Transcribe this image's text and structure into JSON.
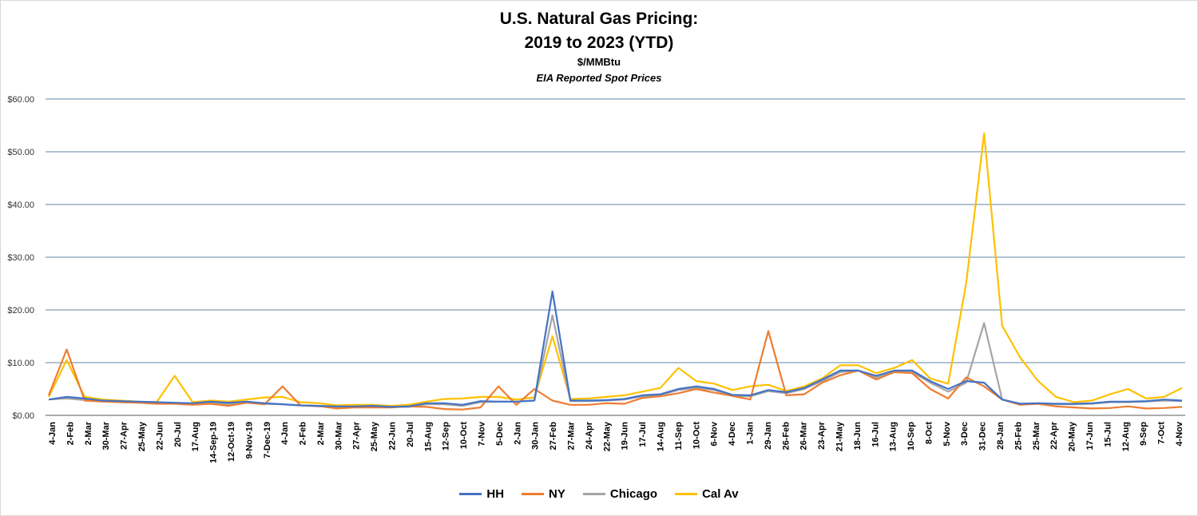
{
  "chart_data": {
    "type": "line",
    "title": "U.S. Natural Gas Pricing:",
    "title_line2": "2019 to 2023 (YTD)",
    "subtitle": "$/MMBtu",
    "subtitle2": "EIA Reported Spot Prices",
    "xlabel": "",
    "ylabel": "",
    "ylim": [
      0,
      60
    ],
    "yticks": [
      "$0.00",
      "$10.00",
      "$20.00",
      "$30.00",
      "$40.00",
      "$50.00",
      "$60.00"
    ],
    "grid": true,
    "legend_position": "bottom",
    "x_tick_labels": [
      "4-Jan",
      "2-Feb",
      "2-Mar",
      "30-Mar",
      "27-Apr",
      "25-May",
      "22-Jun",
      "20-Jul",
      "17-Aug",
      "14-Sep-19",
      "12-Oct-19",
      "9-Nov-19",
      "7-Dec-19",
      "4-Jan",
      "2-Feb",
      "2-Mar",
      "30-Mar",
      "27-Apr",
      "25-May",
      "22-Jun",
      "20-Jul",
      "15-Aug",
      "12-Sep",
      "10-Oct",
      "7-Nov",
      "5-Dec",
      "2-Jan",
      "30-Jan",
      "27-Feb",
      "27-Mar",
      "24-Apr",
      "22-May",
      "19-Jun",
      "17-Jul",
      "14-Aug",
      "11-Sep",
      "10-Oct",
      "6-Nov",
      "4-Dec",
      "1-Jan",
      "29-Jan",
      "26-Feb",
      "26-Mar",
      "23-Apr",
      "21-May",
      "18-Jun",
      "16-Jul",
      "13-Aug",
      "10-Sep",
      "8-Oct",
      "5-Nov",
      "3-Dec",
      "31-Dec",
      "28-Jan",
      "25-Feb",
      "25-Mar",
      "22-Apr",
      "20-May",
      "17-Jun",
      "15-Jul",
      "12-Aug",
      "9-Sep",
      "7-Oct",
      "4-Nov"
    ],
    "series": [
      {
        "name": "HH",
        "color": "#4472c4",
        "values": [
          3.0,
          3.5,
          3.2,
          2.8,
          2.7,
          2.6,
          2.5,
          2.4,
          2.3,
          2.6,
          2.4,
          2.6,
          2.3,
          2.1,
          1.9,
          1.8,
          1.7,
          1.7,
          1.8,
          1.6,
          1.7,
          2.3,
          2.3,
          2.0,
          2.7,
          2.6,
          2.6,
          2.8,
          23.5,
          2.8,
          2.8,
          2.9,
          3.1,
          3.8,
          4.0,
          5.0,
          5.5,
          5.0,
          3.9,
          3.8,
          4.8,
          4.4,
          5.2,
          6.8,
          8.5,
          8.5,
          7.5,
          8.5,
          8.5,
          6.5,
          5.0,
          6.5,
          6.2,
          3.0,
          2.2,
          2.3,
          2.2,
          2.2,
          2.3,
          2.6,
          2.6,
          2.7,
          3.0,
          2.8
        ]
      },
      {
        "name": "NY",
        "color": "#ed7d31",
        "values": [
          3.8,
          12.5,
          2.8,
          2.6,
          2.5,
          2.4,
          2.2,
          2.2,
          2.0,
          2.2,
          1.8,
          2.4,
          2.1,
          5.5,
          1.9,
          1.8,
          1.3,
          1.5,
          1.5,
          1.5,
          1.7,
          1.6,
          1.2,
          1.1,
          1.5,
          5.5,
          2.0,
          5.0,
          2.8,
          2.0,
          2.0,
          2.3,
          2.2,
          3.3,
          3.6,
          4.2,
          5.0,
          4.3,
          3.7,
          3.0,
          16.0,
          3.8,
          4.0,
          6.2,
          7.6,
          8.5,
          6.8,
          8.2,
          8.0,
          5.0,
          3.2,
          7.2,
          5.5,
          3.0,
          2.0,
          2.2,
          1.7,
          1.5,
          1.3,
          1.4,
          1.7,
          1.3,
          1.4,
          1.6
        ]
      },
      {
        "name": "Chicago",
        "color": "#a5a5a5",
        "values": [
          3.0,
          3.2,
          2.9,
          2.7,
          2.5,
          2.4,
          2.3,
          2.3,
          2.1,
          2.4,
          2.1,
          2.6,
          2.2,
          2.1,
          1.9,
          1.7,
          1.6,
          1.6,
          1.8,
          1.6,
          1.6,
          2.1,
          2.1,
          1.8,
          2.5,
          2.6,
          2.6,
          2.8,
          19.0,
          2.7,
          2.7,
          2.8,
          3.0,
          3.6,
          3.8,
          4.8,
          5.2,
          4.8,
          3.7,
          3.6,
          4.6,
          4.2,
          5.0,
          6.5,
          8.2,
          8.5,
          7.2,
          8.2,
          8.2,
          6.2,
          4.5,
          6.2,
          17.5,
          3.0,
          2.2,
          2.3,
          2.1,
          2.1,
          2.2,
          2.5,
          2.5,
          2.6,
          2.8,
          2.7
        ]
      },
      {
        "name": "Cal Av",
        "color": "#ffc000",
        "values": [
          3.5,
          10.5,
          3.5,
          3.0,
          2.8,
          2.6,
          2.5,
          7.5,
          2.5,
          2.8,
          2.6,
          3.0,
          3.4,
          3.5,
          2.5,
          2.3,
          1.9,
          2.0,
          2.0,
          1.8,
          2.0,
          2.6,
          3.1,
          3.2,
          3.5,
          3.5,
          3.0,
          3.4,
          15.0,
          3.1,
          3.2,
          3.5,
          3.8,
          4.5,
          5.2,
          9.0,
          6.5,
          6.0,
          4.8,
          5.5,
          5.8,
          4.6,
          5.5,
          7.0,
          9.5,
          9.5,
          8.0,
          9.0,
          10.5,
          7.0,
          6.0,
          25.0,
          53.5,
          17.0,
          11.0,
          6.5,
          3.5,
          2.5,
          2.8,
          4.0,
          5.0,
          3.2,
          3.5,
          5.2
        ]
      }
    ]
  }
}
